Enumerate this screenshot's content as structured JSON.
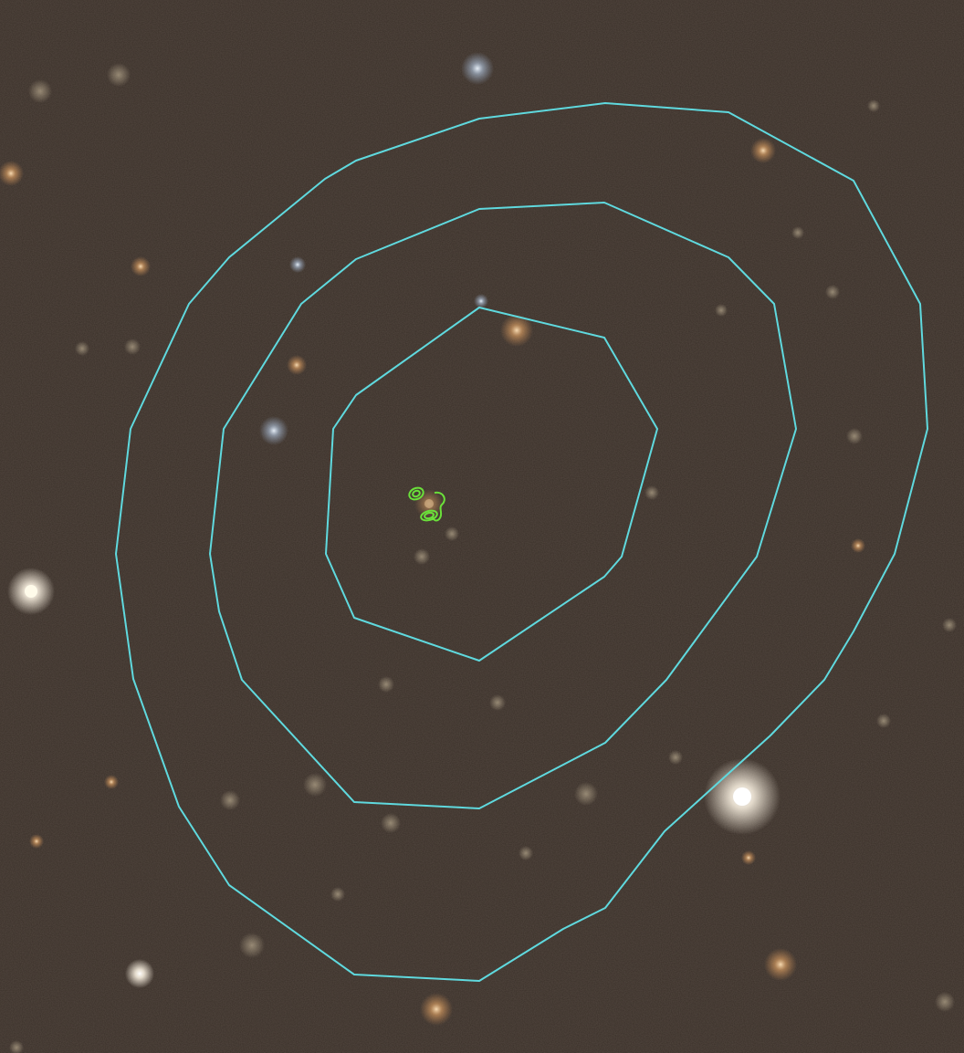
{
  "image": {
    "background_color": "#3a3029",
    "stars_color_warm": "#ffbe7a",
    "stars_color_cool": "#cfe4ff",
    "stars_color_white": "#fffbe8"
  },
  "overlays": {
    "outer_contour_color": "#5fd9de",
    "inner_contour_color": "#6ae03a",
    "contour_levels_outer": 3,
    "contour_levels_inner": 3
  }
}
